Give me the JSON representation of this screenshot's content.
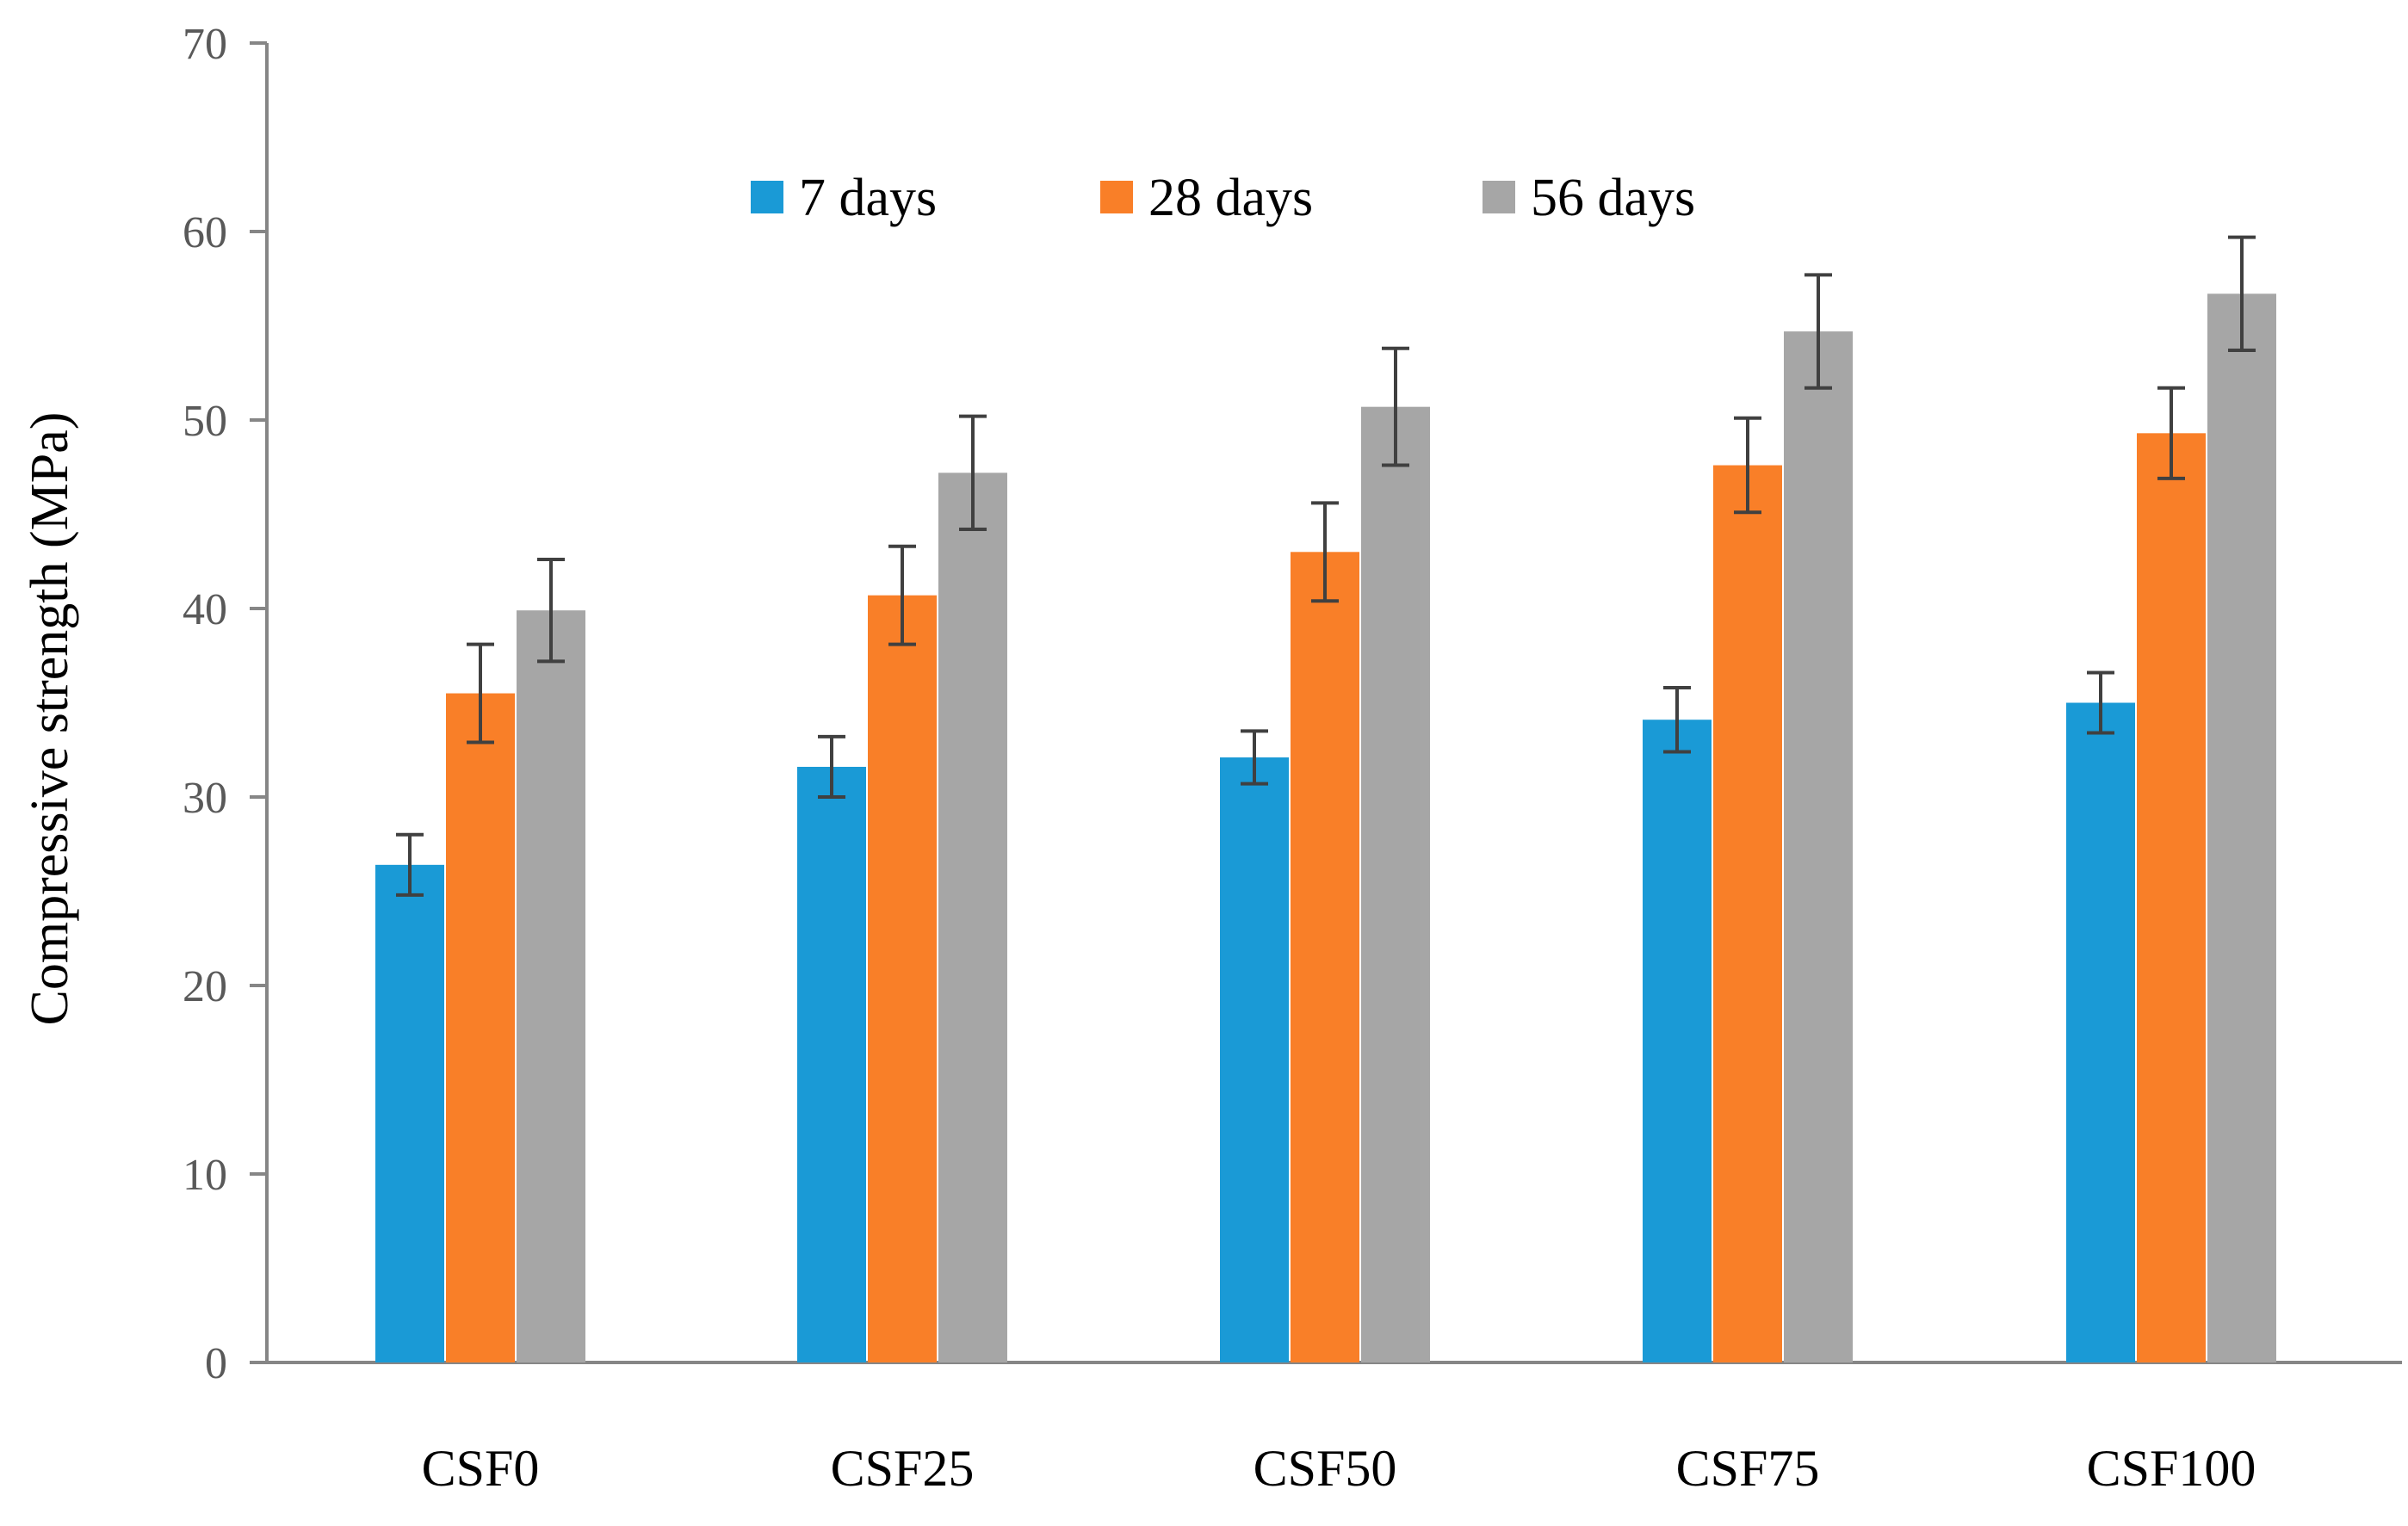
{
  "chart_data": {
    "type": "bar",
    "title": "",
    "xlabel": "",
    "ylabel": "Compressive strength (MPa)",
    "ylim": [
      0,
      70
    ],
    "yticks": [
      0,
      10,
      20,
      30,
      40,
      50,
      60,
      70
    ],
    "grid": false,
    "legend_position": "top-center",
    "categories": [
      "CSF0",
      "CSF25",
      "CSF50",
      "CSF75",
      "CSF100"
    ],
    "series": [
      {
        "name": "7 days",
        "color": "#1a9ad6",
        "values": [
          26.4,
          31.6,
          32.1,
          34.1,
          35.0
        ],
        "errors": [
          1.6,
          1.6,
          1.4,
          1.7,
          1.6
        ]
      },
      {
        "name": "28 days",
        "color": "#f97f28",
        "values": [
          35.5,
          40.7,
          43.0,
          47.6,
          49.3
        ],
        "errors": [
          2.6,
          2.6,
          2.6,
          2.5,
          2.4
        ]
      },
      {
        "name": "56 days",
        "color": "#a6a6a6",
        "values": [
          39.9,
          47.2,
          50.7,
          54.7,
          56.7
        ],
        "errors": [
          2.7,
          3.0,
          3.1,
          3.0,
          3.0
        ]
      }
    ]
  }
}
